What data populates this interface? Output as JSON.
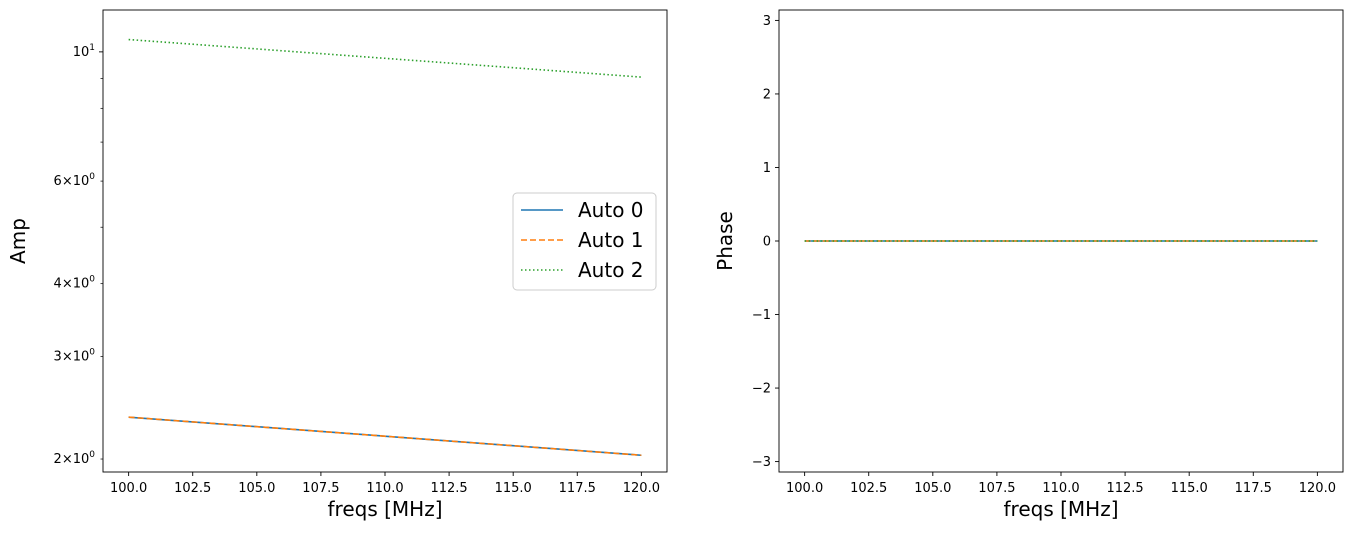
{
  "chart_data": [
    {
      "type": "line",
      "xlabel": "freqs [MHz]",
      "ylabel": "Amp",
      "yscale": "log",
      "xlim": [
        99.0,
        121.0
      ],
      "ylim": [
        1.9,
        11.8
      ],
      "xticks": [
        100.0,
        102.5,
        105.0,
        107.5,
        110.0,
        112.5,
        115.0,
        117.5,
        120.0
      ],
      "xtick_labels": [
        "100.0",
        "102.5",
        "105.0",
        "107.5",
        "110.0",
        "112.5",
        "115.0",
        "117.5",
        "120.0"
      ],
      "yticks_major": [
        {
          "value": 10,
          "base": "10",
          "exp": "1"
        }
      ],
      "yticks_minor": [
        {
          "value": 2,
          "mant": "2",
          "base": "10",
          "exp": "0"
        },
        {
          "value": 3,
          "mant": "3",
          "base": "10",
          "exp": "0"
        },
        {
          "value": 4,
          "mant": "4",
          "base": "10",
          "exp": "0"
        },
        {
          "value": 5,
          "mant": "",
          "base": "",
          "exp": ""
        },
        {
          "value": 6,
          "mant": "6",
          "base": "10",
          "exp": "0"
        },
        {
          "value": 7,
          "mant": "",
          "base": "",
          "exp": ""
        },
        {
          "value": 8,
          "mant": "",
          "base": "",
          "exp": ""
        },
        {
          "value": 9,
          "mant": "",
          "base": "",
          "exp": ""
        }
      ],
      "grid": false,
      "legend": "center-right",
      "series": [
        {
          "name": "Auto 0",
          "x": [
            100.0,
            120.0
          ],
          "values": [
            2.36,
            2.03
          ],
          "color": "#1f77b4",
          "style": "solid"
        },
        {
          "name": "Auto 1",
          "x": [
            100.0,
            120.0
          ],
          "values": [
            2.36,
            2.03
          ],
          "color": "#ff7f0e",
          "style": "dashed"
        },
        {
          "name": "Auto 2",
          "x": [
            100.0,
            120.0
          ],
          "values": [
            10.5,
            9.05
          ],
          "color": "#2ca02c",
          "style": "dotted"
        }
      ]
    },
    {
      "type": "line",
      "xlabel": "freqs [MHz]",
      "ylabel": "Phase",
      "yscale": "linear",
      "xlim": [
        99.0,
        121.0
      ],
      "ylim": [
        -3.14159,
        3.14159
      ],
      "xticks": [
        100.0,
        102.5,
        105.0,
        107.5,
        110.0,
        112.5,
        115.0,
        117.5,
        120.0
      ],
      "xtick_labels": [
        "100.0",
        "102.5",
        "105.0",
        "107.5",
        "110.0",
        "112.5",
        "115.0",
        "117.5",
        "120.0"
      ],
      "yticks": [
        -3,
        -2,
        -1,
        0,
        1,
        2,
        3
      ],
      "ytick_labels": [
        "−3",
        "−2",
        "−1",
        "0",
        "1",
        "2",
        "3"
      ],
      "grid": false,
      "series": [
        {
          "x": [
            100.0,
            120.0
          ],
          "values": [
            0,
            0
          ],
          "color": "#1f77b4",
          "style": "solid"
        },
        {
          "x": [
            100.0,
            120.0
          ],
          "values": [
            0,
            0
          ],
          "color": "#ff7f0e",
          "style": "dashed"
        },
        {
          "x": [
            100.0,
            120.0
          ],
          "values": [
            0,
            0
          ],
          "color": "#2ca02c",
          "style": "dotted"
        }
      ]
    }
  ]
}
